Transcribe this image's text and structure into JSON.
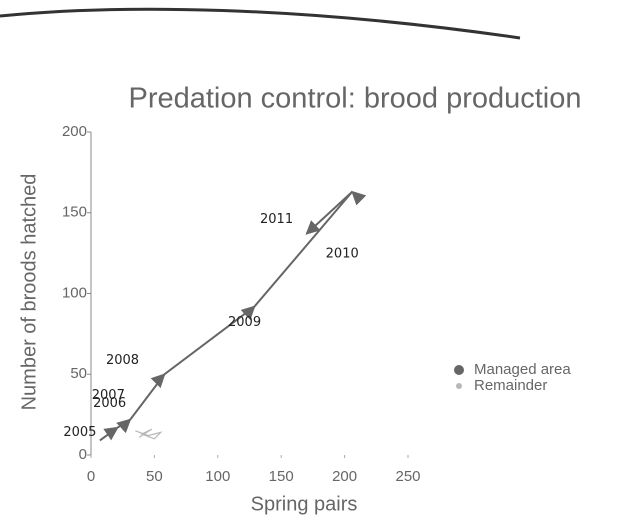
{
  "chart_data": {
    "type": "line",
    "title": "Predation control: brood production",
    "x_label": "Spring pairs",
    "y_label": "Number of broods hatched",
    "xlim": [
      0,
      250
    ],
    "xticks": [
      0,
      50,
      100,
      150,
      200,
      250
    ],
    "ylim": [
      0,
      200
    ],
    "yticks": [
      0,
      50,
      100,
      150,
      200
    ],
    "legend": "right",
    "series": [
      {
        "name": "Managed area",
        "color": "#666666",
        "x": [
          7,
          21,
          31,
          58,
          129,
          206,
          170
        ],
        "values": [
          9,
          17,
          22,
          50,
          92,
          163,
          137
        ],
        "point_labels": [
          "2005",
          "2006",
          "2007",
          "2008",
          "2009",
          "2010",
          "2011"
        ]
      },
      {
        "name": "Remainder",
        "color": "#b8b8b8",
        "x": [
          35,
          45,
          55,
          50,
          40,
          48,
          38
        ],
        "values": [
          15,
          12,
          14,
          10,
          13,
          16,
          11
        ]
      }
    ]
  }
}
